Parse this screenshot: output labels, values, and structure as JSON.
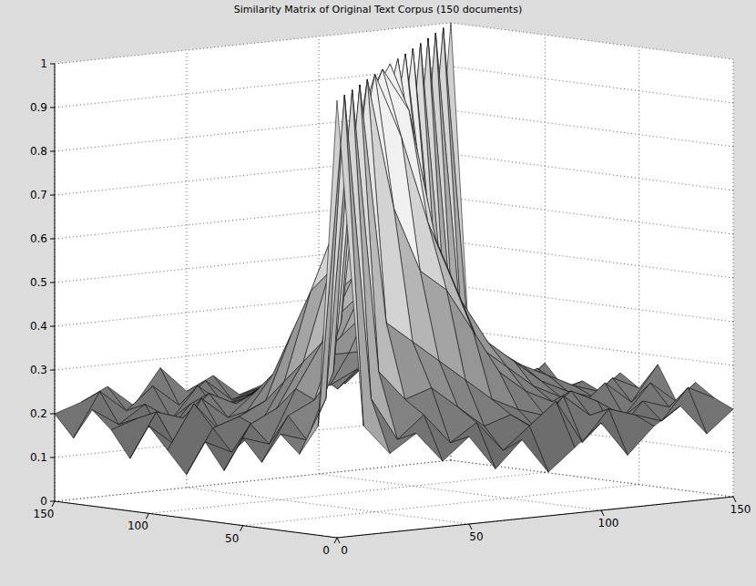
{
  "chart_data": {
    "type": "surface",
    "title": "Similarity Matrix of Original Text Corpus (150 documents)",
    "x": [
      0,
      10,
      20,
      30,
      40,
      50,
      60,
      70,
      80,
      90,
      100,
      110,
      120,
      130,
      140,
      150
    ],
    "y": [
      0,
      10,
      20,
      30,
      40,
      50,
      60,
      70,
      80,
      90,
      100,
      110,
      120,
      130,
      140,
      150
    ],
    "z": [
      [
        1,
        0.25,
        0.18,
        0.22,
        0.15,
        0.2,
        0.12,
        0.18,
        0.1,
        0.15,
        0.2,
        0.12,
        0.18,
        0.22,
        0.15,
        0.2
      ],
      [
        0.25,
        1,
        0.3,
        0.2,
        0.25,
        0.18,
        0.22,
        0.15,
        0.2,
        0.25,
        0.15,
        0.22,
        0.2,
        0.18,
        0.25,
        0.22
      ],
      [
        0.18,
        0.3,
        1,
        0.35,
        0.28,
        0.3,
        0.25,
        0.2,
        0.22,
        0.18,
        0.25,
        0.2,
        0.15,
        0.22,
        0.2,
        0.25
      ],
      [
        0.22,
        0.2,
        0.35,
        1,
        0.45,
        0.4,
        0.35,
        0.3,
        0.25,
        0.22,
        0.2,
        0.25,
        0.22,
        0.18,
        0.25,
        0.2
      ],
      [
        0.15,
        0.25,
        0.28,
        0.45,
        1,
        0.7,
        0.55,
        0.5,
        0.4,
        0.3,
        0.25,
        0.22,
        0.2,
        0.25,
        0.2,
        0.28
      ],
      [
        0.2,
        0.18,
        0.3,
        0.4,
        0.7,
        1,
        0.85,
        0.65,
        0.5,
        0.35,
        0.3,
        0.25,
        0.22,
        0.2,
        0.25,
        0.22
      ],
      [
        0.12,
        0.22,
        0.25,
        0.35,
        0.55,
        0.85,
        1,
        0.9,
        0.6,
        0.45,
        0.35,
        0.3,
        0.25,
        0.22,
        0.2,
        0.25
      ],
      [
        0.18,
        0.15,
        0.2,
        0.3,
        0.5,
        0.65,
        0.9,
        1,
        0.75,
        0.5,
        0.4,
        0.3,
        0.28,
        0.25,
        0.22,
        0.2
      ],
      [
        0.1,
        0.2,
        0.22,
        0.25,
        0.4,
        0.5,
        0.6,
        0.75,
        1,
        0.6,
        0.45,
        0.35,
        0.3,
        0.25,
        0.2,
        0.22
      ],
      [
        0.15,
        0.25,
        0.18,
        0.22,
        0.3,
        0.35,
        0.45,
        0.5,
        0.6,
        1,
        0.5,
        0.4,
        0.3,
        0.22,
        0.25,
        0.2
      ],
      [
        0.2,
        0.15,
        0.25,
        0.2,
        0.25,
        0.3,
        0.35,
        0.4,
        0.45,
        0.5,
        1,
        0.35,
        0.3,
        0.25,
        0.2,
        0.25
      ],
      [
        0.12,
        0.22,
        0.2,
        0.25,
        0.22,
        0.25,
        0.3,
        0.3,
        0.35,
        0.4,
        0.35,
        1,
        0.3,
        0.22,
        0.25,
        0.2
      ],
      [
        0.18,
        0.2,
        0.15,
        0.22,
        0.2,
        0.22,
        0.25,
        0.28,
        0.3,
        0.3,
        0.3,
        0.3,
        1,
        0.28,
        0.22,
        0.25
      ],
      [
        0.22,
        0.18,
        0.22,
        0.18,
        0.25,
        0.2,
        0.22,
        0.25,
        0.25,
        0.22,
        0.25,
        0.22,
        0.28,
        1,
        0.3,
        0.22
      ],
      [
        0.15,
        0.25,
        0.2,
        0.25,
        0.2,
        0.25,
        0.2,
        0.22,
        0.2,
        0.25,
        0.2,
        0.25,
        0.22,
        0.3,
        1,
        0.25
      ],
      [
        0.2,
        0.22,
        0.25,
        0.2,
        0.28,
        0.22,
        0.25,
        0.2,
        0.22,
        0.2,
        0.25,
        0.2,
        0.25,
        0.22,
        0.25,
        1
      ]
    ],
    "xlim": [
      0,
      150
    ],
    "ylim": [
      0,
      150
    ],
    "zlim": [
      0,
      1
    ],
    "xticks": [
      0,
      50,
      100,
      150
    ],
    "yticks": [
      0,
      50,
      100,
      150
    ],
    "zticks": [
      0,
      0.1,
      0.2,
      0.3,
      0.4,
      0.5,
      0.6,
      0.7,
      0.8,
      0.9,
      1
    ],
    "grid": true
  }
}
